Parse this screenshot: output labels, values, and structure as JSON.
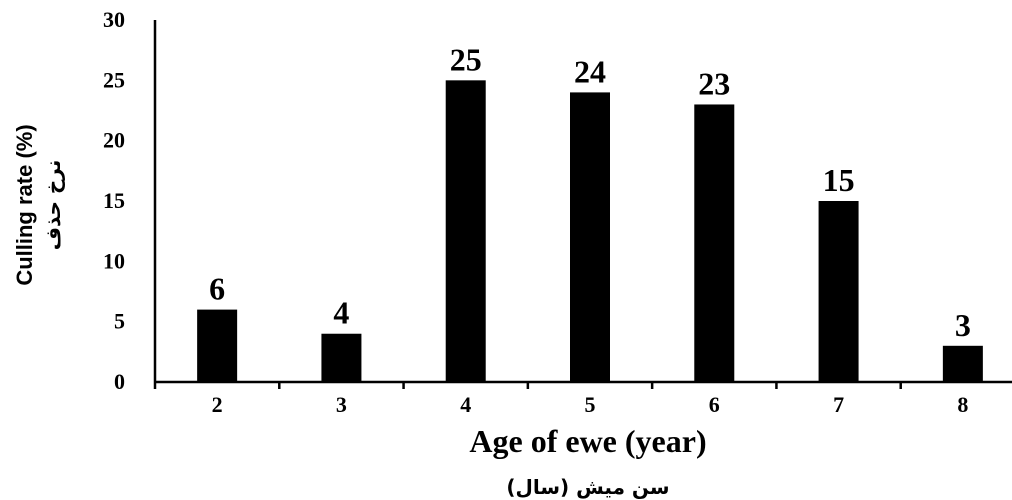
{
  "chart_data": {
    "type": "bar",
    "categories": [
      "2",
      "3",
      "4",
      "5",
      "6",
      "7",
      "8"
    ],
    "values": [
      6,
      4,
      25,
      24,
      23,
      15,
      3
    ],
    "data_labels": [
      "6",
      "4",
      "25",
      "24",
      "23",
      "15",
      "3"
    ],
    "xlabel": "Age of ewe (year)",
    "xlabel_secondary": "سن میش (سال)",
    "ylabel": "Culling rate (%)",
    "ylabel_secondary": "نرخ حذف",
    "ylim": [
      0,
      30
    ],
    "yticks": [
      "0",
      "5",
      "10",
      "15",
      "20",
      "25",
      "30"
    ],
    "grid": false,
    "bar_color": "#000000"
  }
}
